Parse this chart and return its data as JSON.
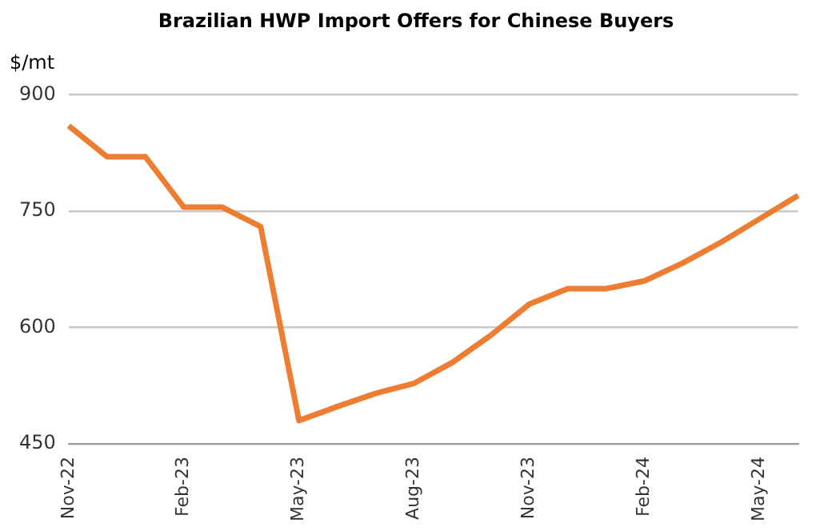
{
  "chart_data": {
    "type": "line",
    "title": "Brazilian HWP Import Offers for Chinese Buyers",
    "ylabel": "$/mt",
    "categories": [
      "Nov-22",
      null,
      null,
      "Feb-23",
      null,
      null,
      "May-23",
      null,
      null,
      "Aug-23",
      null,
      null,
      "Nov-23",
      null,
      null,
      "Feb-24",
      null,
      null,
      "May-24",
      null
    ],
    "series": [
      {
        "color": "#ed7d31",
        "values": [
          860,
          820,
          820,
          755,
          755,
          730,
          480,
          498,
          515,
          528,
          555,
          590,
          630,
          650,
          650,
          660,
          683,
          710,
          740,
          770
        ]
      }
    ],
    "ylim": [
      450,
      900
    ],
    "yticks": [
      450,
      600,
      750,
      900
    ],
    "grid": "y",
    "legend": false,
    "marker": "none",
    "line_style": "solid"
  }
}
